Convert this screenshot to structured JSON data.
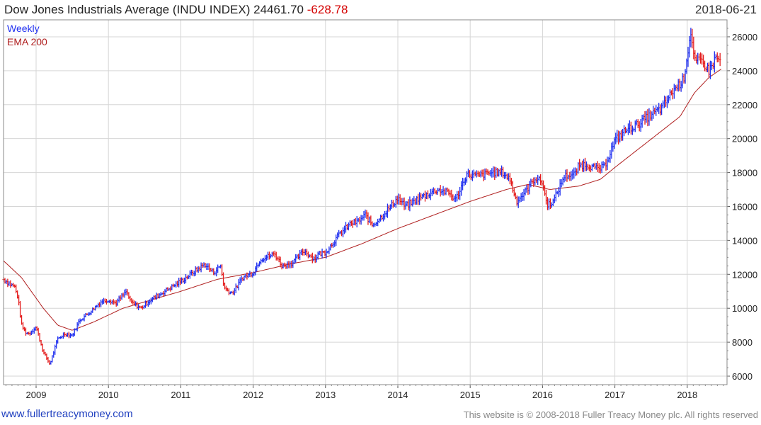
{
  "header": {
    "title": "Dow Jones Industrials Average (INDU INDEX)",
    "last_price": "24461.70",
    "change": "-628.78",
    "date": "2018-06-21"
  },
  "footer": {
    "website": "www.fullertreacymoney.com",
    "copyright": "This website is © 2008-2018 Fuller Treacy Money plc. All rights reserved"
  },
  "colors": {
    "up_bar": "#1f2ff0",
    "down_bar": "#e41b1b",
    "ema_line": "#b02020",
    "grid": "#d6d6d6",
    "plot_border": "#888888"
  },
  "chart_data": {
    "type": "line",
    "legend": [
      "Weekly",
      "EMA 200"
    ],
    "legend_position": "top-left",
    "y_axis_side": "right",
    "grid": true,
    "xlim": [
      2008.55,
      2018.55
    ],
    "ylim": [
      5500,
      27000
    ],
    "x_ticks": [
      "2009",
      "2010",
      "2011",
      "2012",
      "2013",
      "2014",
      "2015",
      "2016",
      "2017",
      "2018"
    ],
    "y_ticks": [
      "6000",
      "8000",
      "10000",
      "12000",
      "14000",
      "16000",
      "18000",
      "20000",
      "22000",
      "24000",
      "26000"
    ],
    "series": [
      {
        "name": "Weekly",
        "style": "ohlc_bars",
        "x": [
          2008.55,
          2008.65,
          2008.7,
          2008.75,
          2008.8,
          2008.85,
          2008.9,
          2009.0,
          2009.1,
          2009.19,
          2009.3,
          2009.4,
          2009.5,
          2009.6,
          2009.75,
          2009.9,
          2010.0,
          2010.1,
          2010.25,
          2010.3,
          2010.45,
          2010.55,
          2010.7,
          2010.85,
          2011.0,
          2011.2,
          2011.33,
          2011.45,
          2011.55,
          2011.6,
          2011.7,
          2011.75,
          2011.85,
          2012.0,
          2012.1,
          2012.3,
          2012.4,
          2012.55,
          2012.7,
          2012.85,
          2012.9,
          2013.0,
          2013.2,
          2013.35,
          2013.45,
          2013.55,
          2013.65,
          2013.75,
          2013.9,
          2014.0,
          2014.1,
          2014.3,
          2014.45,
          2014.55,
          2014.7,
          2014.8,
          2014.95,
          2015.1,
          2015.3,
          2015.45,
          2015.55,
          2015.64,
          2015.75,
          2015.9,
          2016.0,
          2016.06,
          2016.15,
          2016.3,
          2016.45,
          2016.5,
          2016.6,
          2016.75,
          2016.85,
          2017.0,
          2017.15,
          2017.3,
          2017.5,
          2017.65,
          2017.8,
          2017.95,
          2018.05,
          2018.1,
          2018.2,
          2018.3,
          2018.4,
          2018.47
        ],
        "values": [
          11700,
          11400,
          11300,
          10600,
          9000,
          8600,
          8500,
          8900,
          7400,
          6700,
          8200,
          8500,
          8400,
          9300,
          9800,
          10400,
          10500,
          10300,
          11000,
          10400,
          10000,
          10400,
          10800,
          11200,
          11600,
          12200,
          12600,
          12100,
          12500,
          11200,
          10900,
          11100,
          11800,
          12100,
          12900,
          13200,
          12500,
          12700,
          13400,
          12900,
          13200,
          13300,
          14400,
          15000,
          15100,
          15500,
          14900,
          15300,
          16000,
          16500,
          16000,
          16500,
          16800,
          17000,
          16800,
          16400,
          17900,
          17800,
          18000,
          18000,
          17600,
          16300,
          16800,
          17700,
          17400,
          16100,
          16300,
          17800,
          17900,
          18400,
          18500,
          18200,
          18300,
          19900,
          20500,
          20800,
          21400,
          21800,
          22800,
          23500,
          26300,
          24500,
          24600,
          24000,
          24800,
          24460
        ]
      },
      {
        "name": "EMA 200",
        "style": "line",
        "x": [
          2008.55,
          2008.8,
          2009.1,
          2009.3,
          2009.5,
          2009.8,
          2010.2,
          2010.6,
          2011.0,
          2011.5,
          2012.0,
          2012.5,
          2013.0,
          2013.5,
          2014.0,
          2014.5,
          2015.0,
          2015.5,
          2015.8,
          2016.1,
          2016.5,
          2016.8,
          2017.0,
          2017.3,
          2017.6,
          2017.9,
          2018.1,
          2018.3,
          2018.47
        ],
        "values": [
          12800,
          11800,
          10000,
          9000,
          8700,
          9200,
          10000,
          10500,
          11000,
          11700,
          12100,
          12600,
          13000,
          13800,
          14700,
          15500,
          16300,
          17000,
          17300,
          17000,
          17200,
          17600,
          18300,
          19300,
          20300,
          21300,
          22700,
          23600,
          24100
        ]
      }
    ]
  }
}
